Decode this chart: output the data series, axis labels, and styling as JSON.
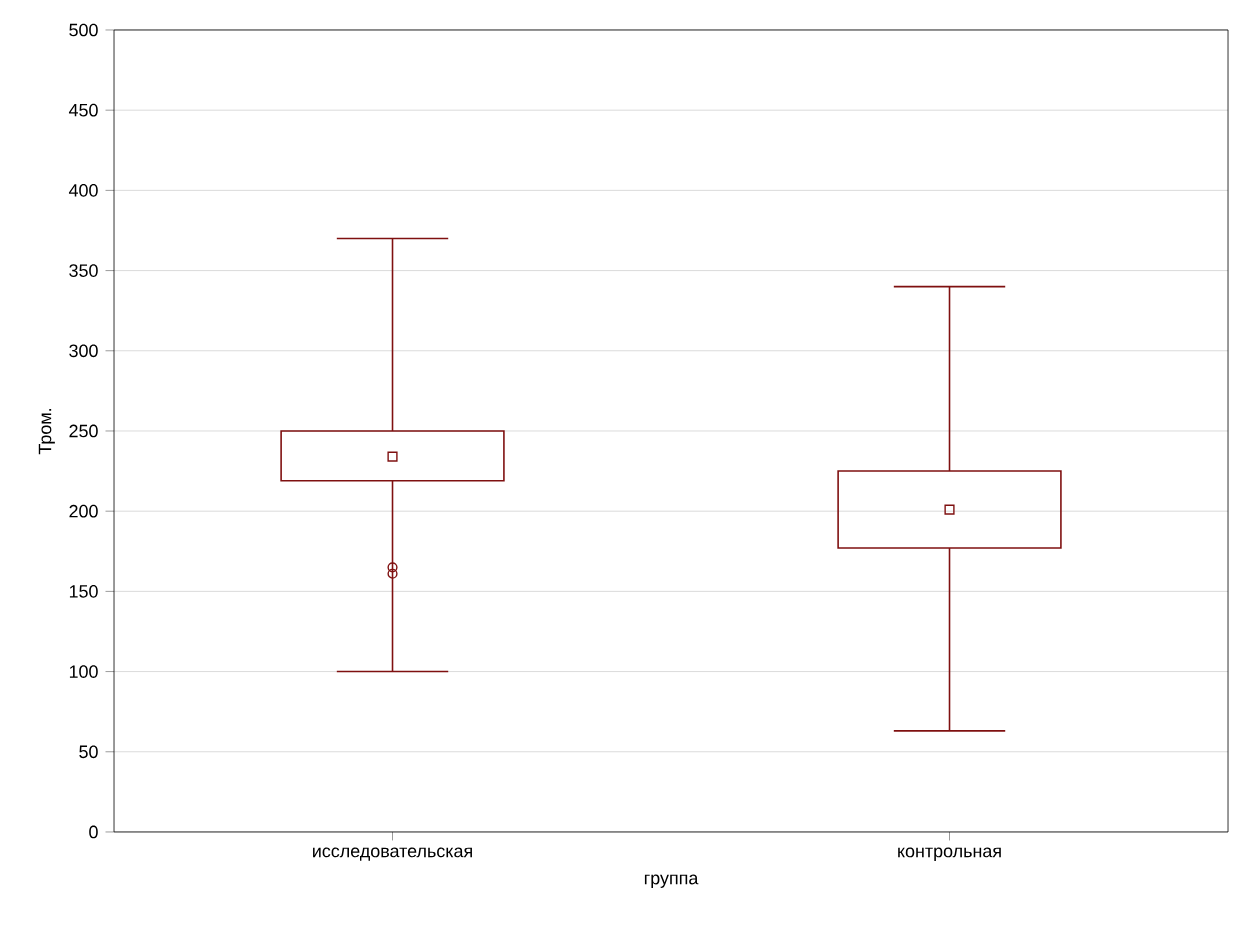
{
  "chart_data": {
    "type": "box",
    "xlabel": "группа",
    "ylabel": "Тром.",
    "categories": [
      "исследовательская",
      "контрольная"
    ],
    "series": [
      {
        "color": "#7f1010",
        "boxes": [
          {
            "low": 100,
            "q1": 219,
            "median": 234,
            "q3": 250,
            "high": 370,
            "outliers": [
              161,
              165
            ]
          },
          {
            "low": 63,
            "q1": 177,
            "median": 201,
            "q3": 225,
            "high": 340
          }
        ]
      }
    ],
    "ylim": [
      0,
      500
    ],
    "yticks": [
      0,
      50,
      100,
      150,
      200,
      250,
      300,
      350,
      400,
      450,
      500
    ],
    "grid": "y"
  }
}
